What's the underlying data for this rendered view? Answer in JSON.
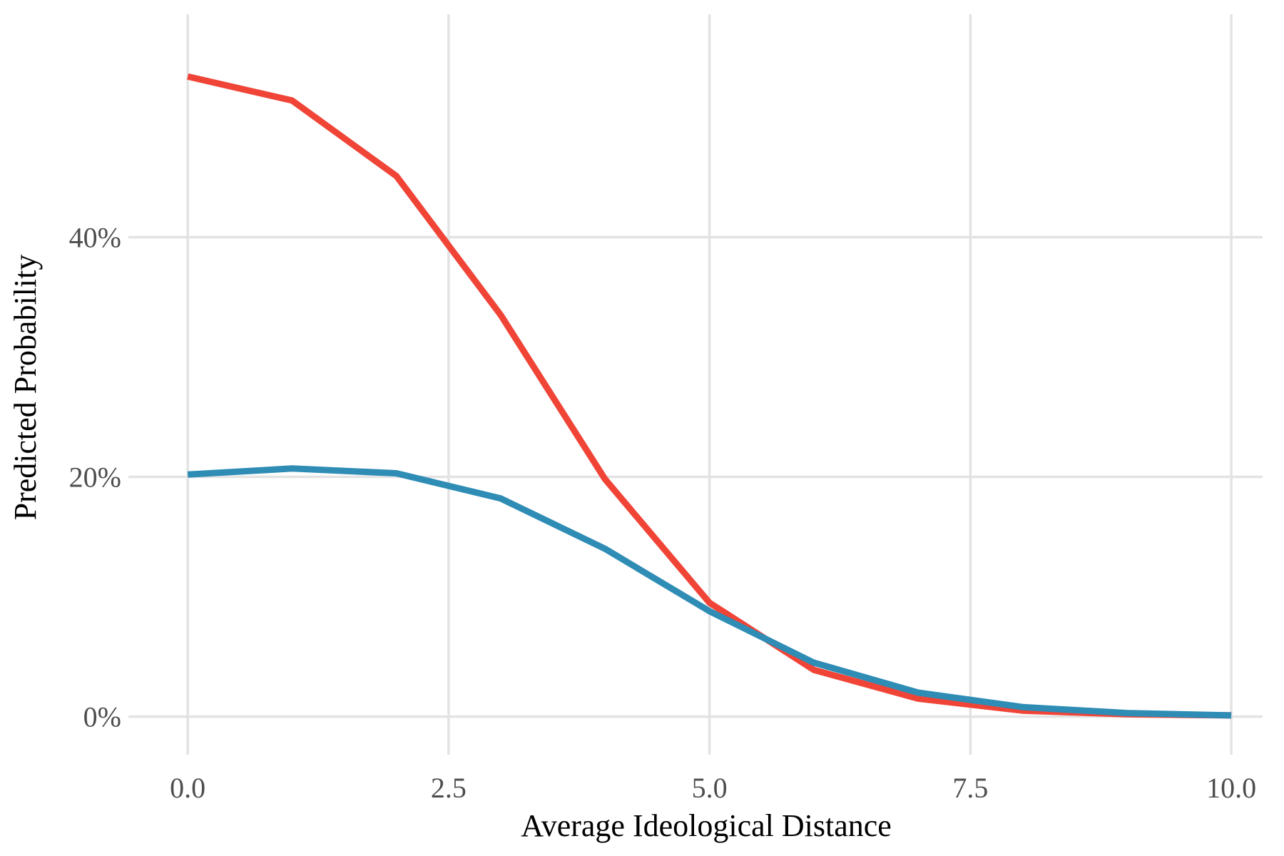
{
  "chart_data": {
    "type": "line",
    "title": "",
    "xlabel": "Average Ideological Distance",
    "ylabel": "Predicted Probability",
    "xlim": [
      -0.5,
      10.3
    ],
    "ylim": [
      -2.7,
      58
    ],
    "x_ticks": [
      {
        "value": 0.0,
        "label": "0.0"
      },
      {
        "value": 2.5,
        "label": "2.5"
      },
      {
        "value": 5.0,
        "label": "5.0"
      },
      {
        "value": 7.5,
        "label": "7.5"
      },
      {
        "value": 10.0,
        "label": "10.0"
      }
    ],
    "y_ticks": [
      {
        "value": 0,
        "label": "0%"
      },
      {
        "value": 20,
        "label": "20%"
      },
      {
        "value": 40,
        "label": "40%"
      }
    ],
    "grid": true,
    "legend": "none",
    "x": [
      0,
      1,
      2,
      3,
      4,
      5,
      6,
      7,
      8,
      9,
      10
    ],
    "series": [
      {
        "color": "#F04437",
        "values": [
          53.4,
          51.4,
          45.1,
          33.5,
          19.8,
          9.5,
          3.9,
          1.5,
          0.5,
          0.2,
          0.1
        ]
      },
      {
        "color": "#2E8CB5",
        "values": [
          20.2,
          20.7,
          20.3,
          18.2,
          14.0,
          8.8,
          4.5,
          2.0,
          0.8,
          0.3,
          0.1
        ]
      }
    ]
  }
}
